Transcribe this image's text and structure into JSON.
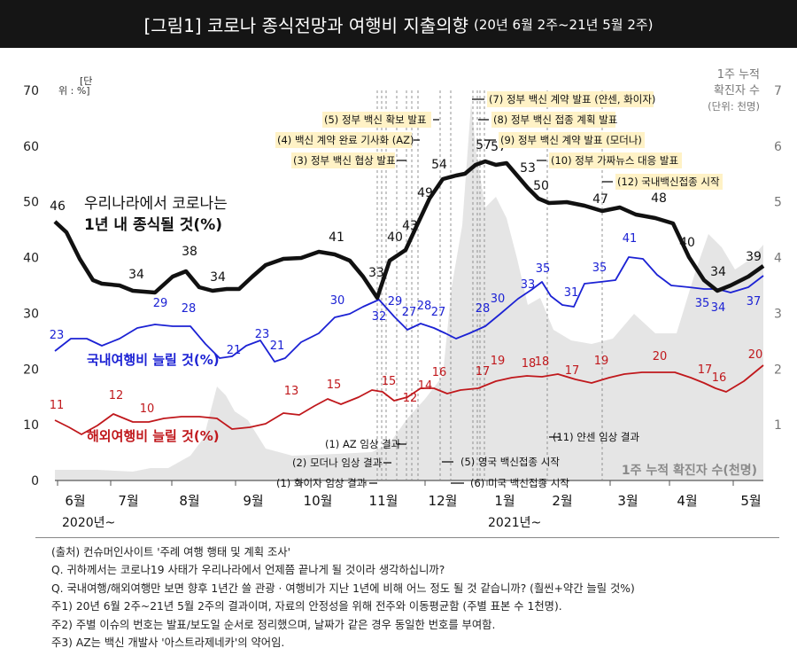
{
  "header": {
    "title": "[그림1] 코로나 종식전망과 여행비 지출의향",
    "subtitle": "(20년 6월 2주~21년 5월 2주)"
  },
  "chart_data": {
    "type": "line",
    "x_months": [
      "6월",
      "7월",
      "8월",
      "9월",
      "10월",
      "11월",
      "12월",
      "1월",
      "2월",
      "3월",
      "4월",
      "5월"
    ],
    "year_labels": [
      "2020년~",
      "2021년~"
    ],
    "left_axis": {
      "unit_label": "[단위 : %]",
      "ticks": [
        0,
        10,
        20,
        30,
        40,
        50,
        60,
        70
      ],
      "range": [
        0,
        70
      ]
    },
    "right_axis": {
      "unit_label": [
        "1주 누적",
        "확진자 수",
        "(단위: 천명)"
      ],
      "ticks": [
        1,
        2,
        3,
        4,
        5,
        6,
        7
      ],
      "range": [
        0,
        7
      ]
    },
    "series": [
      {
        "name": "우리나라에서 코로나는 1년 내 종식될 것(%)",
        "name_line1": "우리나라에서 코로나는",
        "name_line2": "1년 내 종식될 것(%)",
        "color": "#111111",
        "labels": [
          [
            "46",
            46
          ],
          [
            "34",
            34
          ],
          [
            "38",
            38
          ],
          [
            "34",
            34
          ],
          [
            "41",
            41
          ],
          [
            "33",
            33
          ],
          [
            "40",
            40
          ],
          [
            "43",
            43
          ],
          [
            "49",
            49
          ],
          [
            "54",
            54
          ],
          [
            "57",
            57
          ],
          [
            "57",
            57
          ],
          [
            "53",
            53
          ],
          [
            "50",
            50
          ],
          [
            "47",
            47
          ],
          [
            "48",
            48
          ],
          [
            "40",
            40
          ],
          [
            "34",
            34
          ],
          [
            "39",
            39
          ]
        ]
      },
      {
        "name": "국내여행비 늘릴 것(%)",
        "color": "#1c22d4",
        "labels": [
          [
            "23",
            23
          ],
          [
            "29",
            29
          ],
          [
            "28",
            28
          ],
          [
            "21",
            21
          ],
          [
            "23",
            23
          ],
          [
            "21",
            21
          ],
          [
            "30",
            30
          ],
          [
            "29",
            29
          ],
          [
            "32",
            32
          ],
          [
            "27",
            27
          ],
          [
            "28",
            28
          ],
          [
            "27",
            27
          ],
          [
            "28",
            28
          ],
          [
            "30",
            30
          ],
          [
            "33",
            33
          ],
          [
            "35",
            35
          ],
          [
            "31",
            31
          ],
          [
            "35",
            35
          ],
          [
            "41",
            41
          ],
          [
            "35",
            35
          ],
          [
            "34",
            34
          ],
          [
            "37",
            37
          ]
        ]
      },
      {
        "name": "해외여행비 늘릴 것(%)",
        "color": "#c0181c",
        "labels": [
          [
            "11",
            11
          ],
          [
            "12",
            12
          ],
          [
            "10",
            10
          ],
          [
            "13",
            13
          ],
          [
            "15",
            15
          ],
          [
            "15",
            15
          ],
          [
            "12",
            12
          ],
          [
            "14",
            14
          ],
          [
            "16",
            16
          ],
          [
            "17",
            17
          ],
          [
            "19",
            19
          ],
          [
            "18",
            18
          ],
          [
            "18",
            18
          ],
          [
            "17",
            17
          ],
          [
            "19",
            19
          ],
          [
            "20",
            20
          ],
          [
            "17",
            17
          ],
          [
            "16",
            16
          ],
          [
            "20",
            20
          ]
        ]
      },
      {
        "name": "1주 누적 확진자 수(천명)",
        "color": "#e6e6e6"
      }
    ],
    "events_top": [
      "(7) 정부 백신 계약 발표 (얀센, 화이자)",
      "(5) 정부 백신 확보 발표",
      "(8) 정부 백신 접종 계획 발표",
      "(4) 백신 계약 완료 기사화 (AZ)",
      "(9) 정부 백신 계약 발표 (모더나)",
      "(3) 정부 백신 협상 발표",
      "(10) 정부 가짜뉴스 대응 발표",
      "(12) 국내백신접종 시작"
    ],
    "events_bottom": [
      "(1) AZ 임상 결과",
      "(11) 얀센 임상 결과",
      "(2) 모더나 임상 결과",
      "(5) 영국 백신접종 시작",
      "(1) 화이자 임상 결과",
      "(6) 미국 백신접종 시작"
    ]
  },
  "notes": [
    "(출처) 컨슈머인사이트 '주례 여행 행태 및 계획 조사'",
    "Q. 귀하께서는 코로나19 사태가 우리나라에서 언제쯤 끝나게 될 것이라 생각하십니까?",
    "Q. 국내여행/해외여행만 보면 향후 1년간 쓸 관광 · 여행비가 지난 1년에 비해 어느 정도 될 것 같습니까? (훨씬+약간 늘릴 것%)",
    "주1) 20년 6월 2주~21년 5월 2주의 결과이며, 자료의 안정성을 위해 전주와 이동평균함 (주별 표본 수 1천명).",
    "주2) 주별 이슈의 번호는 발표/보도일 순서로 정리했으며, 날짜가 같은 경우 동일한 번호를 부여함.",
    "주3) AZ는 백신 개발사 '아스트라제네카'의 약어임."
  ]
}
